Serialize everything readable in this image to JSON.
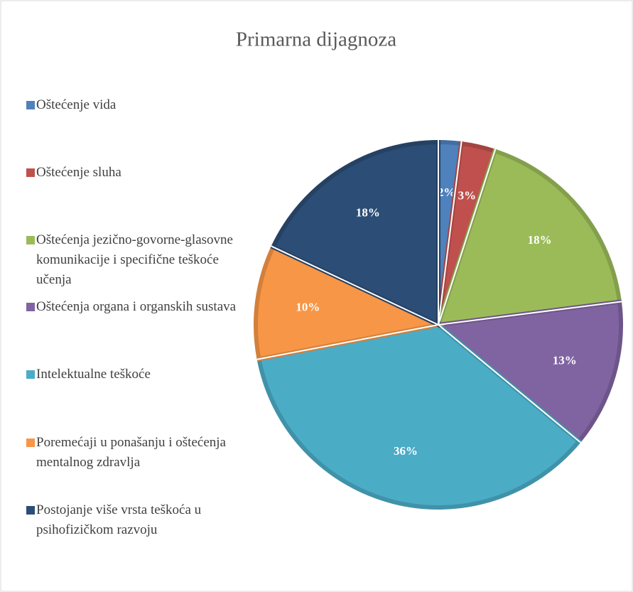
{
  "chart_data": {
    "type": "pie",
    "title": "Primarna dijagnoza",
    "categories": [
      null,
      "Oštećenje vida",
      "Oštećenje sluha",
      "Oštećenja jezično-govorne-glasovne komunikacije i specifične teškoće učenja",
      "Oštećenja organa i organskih sustava",
      "Intelektualne teškoće",
      "Poremećaji u ponašanju i oštećenja mentalnog zdravlja",
      "Postojanje više vrsta teškoća u psihofizičkom razvoju"
    ],
    "values": [
      0,
      2,
      3,
      18,
      13,
      36,
      10,
      18
    ],
    "value_labels": [
      "0%",
      "2%",
      "3%",
      "18%",
      "13%",
      "36%",
      "10%",
      "18%"
    ],
    "colors": [
      "#4f81bd",
      "#4f81bd",
      "#c0504d",
      "#9bbb59",
      "#8064a2",
      "#4bacc6",
      "#f79646",
      "#2c4d75"
    ],
    "legend": "left"
  }
}
